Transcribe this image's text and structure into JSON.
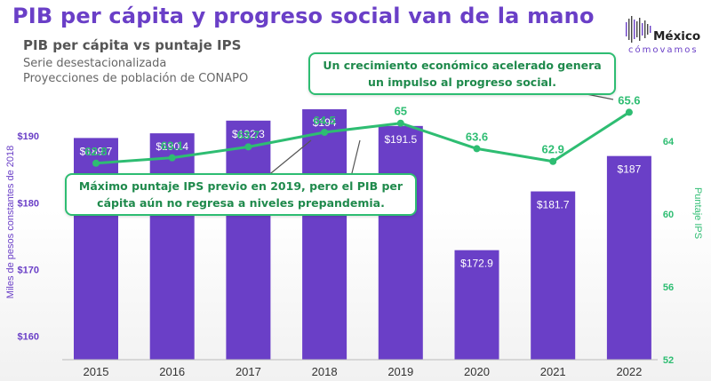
{
  "header": {
    "title": "PIB per cápita y progreso social van de la mano",
    "subtitle": "PIB per cápita vs puntaje IPS",
    "notes": [
      "Serie desestacionalizada",
      "Proyecciones de población de CONAPO"
    ]
  },
  "logo": {
    "word": "México",
    "sub": "cómovamos"
  },
  "annotations": {
    "top": "Un crecimiento económico acelerado genera un impulso al progreso social.",
    "middle": "Máximo puntaje IPS previo en 2019, pero el PIB per cápita aún no regresa a niveles prepandemia."
  },
  "colors": {
    "title": "#6a3fc7",
    "bar": "#6a3fc7",
    "line": "#2ebd72",
    "left_axis": "#6a3fc7",
    "right_axis": "#2ebd72"
  },
  "chart_data": {
    "type": "bar",
    "categories": [
      "2015",
      "2016",
      "2017",
      "2018",
      "2019",
      "2020",
      "2021",
      "2022"
    ],
    "series": [
      {
        "type": "bar",
        "axis": "left",
        "values": [
          189.7,
          190.4,
          192.3,
          194,
          191.5,
          172.9,
          181.7,
          187
        ],
        "labels": [
          "$189.7",
          "$190.4",
          "$192.3",
          "$194",
          "$191.5",
          "$172.9",
          "$181.7",
          "$187"
        ]
      },
      {
        "type": "line",
        "axis": "right",
        "values": [
          62.8,
          63.1,
          63.7,
          64.5,
          65,
          63.6,
          62.9,
          65.6
        ],
        "labels": [
          "62.8",
          "63.1",
          "63.7",
          "64.5",
          "65",
          "63.6",
          "62.9",
          "65.6"
        ]
      }
    ],
    "ylabel": "Miles de pesos constantes de 2018",
    "y2label": "Puntaje IPS",
    "ylim": [
      156.5,
      196
    ],
    "y2lim": [
      52,
      66.5
    ],
    "yticks": [
      "$160",
      "$170",
      "$180",
      "$190"
    ],
    "yticks_values": [
      160,
      170,
      180,
      190
    ],
    "y2ticks": [
      "52",
      "56",
      "60",
      "64"
    ],
    "y2ticks_values": [
      52,
      56,
      60,
      64
    ],
    "grid": false,
    "legend": "none"
  }
}
